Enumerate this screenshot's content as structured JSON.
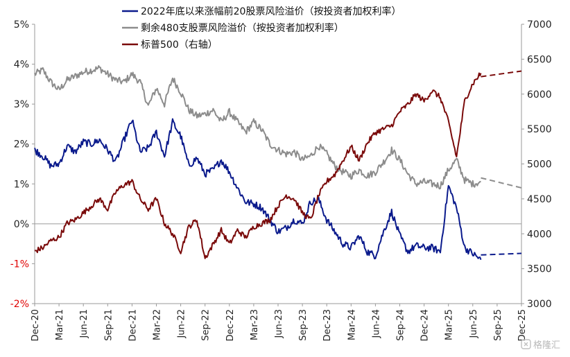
{
  "chart_data": {
    "type": "line",
    "legend": {
      "placement": "top",
      "entries": [
        {
          "label": "2022年底以来涨幅前20股票风险溢价（按投资者加权利率）",
          "color": "#0a1a8c"
        },
        {
          "label": "剩余480支股票风险溢价（按投资者加权利率）",
          "color": "#8c8c8c"
        },
        {
          "label": "标普500（右轴）",
          "color": "#7a0a0a"
        }
      ]
    },
    "y_left": {
      "ylim": [
        -2,
        5
      ],
      "ticks": [
        {
          "value": 5,
          "label": "5%"
        },
        {
          "value": 4,
          "label": "4%"
        },
        {
          "value": 3,
          "label": "3%"
        },
        {
          "value": 2,
          "label": "2%"
        },
        {
          "value": 1,
          "label": "1%"
        },
        {
          "value": 0,
          "label": "0%"
        },
        {
          "value": -1,
          "label": "-1%"
        },
        {
          "value": -2,
          "label": "-2%"
        }
      ]
    },
    "y_right": {
      "ylim": [
        3000,
        7000
      ],
      "ticks": [
        {
          "value": 7000,
          "label": "7000"
        },
        {
          "value": 6500,
          "label": "6500"
        },
        {
          "value": 6000,
          "label": "6000"
        },
        {
          "value": 5500,
          "label": "5500"
        },
        {
          "value": 5000,
          "label": "5000"
        },
        {
          "value": 4500,
          "label": "4500"
        },
        {
          "value": 4000,
          "label": "4000"
        },
        {
          "value": 3500,
          "label": "3500"
        },
        {
          "value": 3000,
          "label": "3000"
        }
      ]
    },
    "x_axis": {
      "range": [
        "2020-12",
        "2025-12"
      ],
      "ticks": [
        {
          "date": "2020-12",
          "label": "Dec-20"
        },
        {
          "date": "2021-03",
          "label": "Mar-21"
        },
        {
          "date": "2021-06",
          "label": "Jun-21"
        },
        {
          "date": "2021-09",
          "label": "Sep-21"
        },
        {
          "date": "2021-12",
          "label": "Dec-21"
        },
        {
          "date": "2022-03",
          "label": "Mar-22"
        },
        {
          "date": "2022-06",
          "label": "Jun-22"
        },
        {
          "date": "2022-09",
          "label": "Sep-22"
        },
        {
          "date": "2022-12",
          "label": "Dec-22"
        },
        {
          "date": "2023-03",
          "label": "Mar-23"
        },
        {
          "date": "2023-06",
          "label": "Jun-23"
        },
        {
          "date": "2023-09",
          "label": "Sep-23"
        },
        {
          "date": "2023-12",
          "label": "Dec-23"
        },
        {
          "date": "2024-03",
          "label": "Mar-24"
        },
        {
          "date": "2024-06",
          "label": "Jun-24"
        },
        {
          "date": "2024-09",
          "label": "Sep-24"
        },
        {
          "date": "2024-12",
          "label": "Dec-24"
        },
        {
          "date": "2025-03",
          "label": "Mar-25"
        },
        {
          "date": "2025-06",
          "label": "Jun-25"
        },
        {
          "date": "2025-09",
          "label": "Sep-25"
        },
        {
          "date": "2025-12",
          "label": "Dec-25"
        }
      ]
    },
    "series": [
      {
        "name": "2022年底以来涨幅前20股票风险溢价（按投资者加权利率）",
        "axis": "left",
        "color": "#0a1a8c",
        "points": [
          [
            "2020-12",
            1.85
          ],
          [
            "2021-01",
            1.7
          ],
          [
            "2021-02",
            1.45
          ],
          [
            "2021-03",
            1.5
          ],
          [
            "2021-04",
            1.95
          ],
          [
            "2021-05",
            1.8
          ],
          [
            "2021-06",
            2.05
          ],
          [
            "2021-07",
            2.0
          ],
          [
            "2021-08",
            2.1
          ],
          [
            "2021-09",
            1.85
          ],
          [
            "2021-10",
            1.55
          ],
          [
            "2021-11",
            2.1
          ],
          [
            "2021-12",
            2.6
          ],
          [
            "2022-01",
            1.8
          ],
          [
            "2022-02",
            1.9
          ],
          [
            "2022-03",
            2.3
          ],
          [
            "2022-04",
            1.7
          ],
          [
            "2022-05",
            2.55
          ],
          [
            "2022-06",
            2.2
          ],
          [
            "2022-07",
            1.45
          ],
          [
            "2022-08",
            1.65
          ],
          [
            "2022-09",
            1.25
          ],
          [
            "2022-10",
            1.35
          ],
          [
            "2022-11",
            1.6
          ],
          [
            "2022-12",
            1.3
          ],
          [
            "2023-01",
            0.9
          ],
          [
            "2023-02",
            0.55
          ],
          [
            "2023-03",
            0.5
          ],
          [
            "2023-04",
            0.4
          ],
          [
            "2023-05",
            0.1
          ],
          [
            "2023-06",
            -0.2
          ],
          [
            "2023-07",
            -0.1
          ],
          [
            "2023-08",
            0.1
          ],
          [
            "2023-09",
            0.0
          ],
          [
            "2023-10",
            0.55
          ],
          [
            "2023-11",
            0.6
          ],
          [
            "2023-12",
            0.1
          ],
          [
            "2024-01",
            -0.2
          ],
          [
            "2024-02",
            -0.5
          ],
          [
            "2024-03",
            -0.6
          ],
          [
            "2024-04",
            -0.3
          ],
          [
            "2024-05",
            -0.7
          ],
          [
            "2024-06",
            -0.8
          ],
          [
            "2024-07",
            -0.2
          ],
          [
            "2024-08",
            0.3
          ],
          [
            "2024-09",
            -0.3
          ],
          [
            "2024-10",
            -0.7
          ],
          [
            "2024-11",
            -0.55
          ],
          [
            "2024-12",
            -0.6
          ],
          [
            "2025-01",
            -0.6
          ],
          [
            "2025-02",
            -0.7
          ],
          [
            "2025-03",
            0.95
          ],
          [
            "2025-04",
            0.4
          ],
          [
            "2025-05",
            -0.6
          ],
          [
            "2025-06",
            -0.75
          ],
          [
            "2025-07",
            -0.9
          ]
        ],
        "projection": [
          [
            "2025-07",
            -0.78
          ],
          [
            "2025-12",
            -0.74
          ]
        ]
      },
      {
        "name": "剩余480支股票风险溢价（按投资者加权利率）",
        "axis": "left",
        "color": "#8c8c8c",
        "points": [
          [
            "2020-12",
            3.75
          ],
          [
            "2021-01",
            3.85
          ],
          [
            "2021-02",
            3.55
          ],
          [
            "2021-03",
            3.35
          ],
          [
            "2021-04",
            3.6
          ],
          [
            "2021-05",
            3.7
          ],
          [
            "2021-06",
            3.8
          ],
          [
            "2021-07",
            3.85
          ],
          [
            "2021-08",
            3.9
          ],
          [
            "2021-09",
            3.75
          ],
          [
            "2021-10",
            3.6
          ],
          [
            "2021-11",
            3.55
          ],
          [
            "2021-12",
            3.75
          ],
          [
            "2022-01",
            3.55
          ],
          [
            "2022-02",
            2.95
          ],
          [
            "2022-03",
            3.4
          ],
          [
            "2022-04",
            3.0
          ],
          [
            "2022-05",
            3.65
          ],
          [
            "2022-06",
            3.3
          ],
          [
            "2022-07",
            2.85
          ],
          [
            "2022-08",
            2.7
          ],
          [
            "2022-09",
            2.75
          ],
          [
            "2022-10",
            2.85
          ],
          [
            "2022-11",
            2.55
          ],
          [
            "2022-12",
            2.8
          ],
          [
            "2023-01",
            2.55
          ],
          [
            "2023-02",
            2.3
          ],
          [
            "2023-03",
            2.55
          ],
          [
            "2023-04",
            2.35
          ],
          [
            "2023-05",
            2.0
          ],
          [
            "2023-06",
            1.85
          ],
          [
            "2023-07",
            1.75
          ],
          [
            "2023-08",
            1.8
          ],
          [
            "2023-09",
            1.6
          ],
          [
            "2023-10",
            1.7
          ],
          [
            "2023-11",
            1.95
          ],
          [
            "2023-12",
            1.75
          ],
          [
            "2024-01",
            1.45
          ],
          [
            "2024-02",
            1.3
          ],
          [
            "2024-03",
            1.2
          ],
          [
            "2024-04",
            1.35
          ],
          [
            "2024-05",
            1.2
          ],
          [
            "2024-06",
            1.3
          ],
          [
            "2024-07",
            1.55
          ],
          [
            "2024-08",
            1.85
          ],
          [
            "2024-09",
            1.6
          ],
          [
            "2024-10",
            1.25
          ],
          [
            "2024-11",
            1.0
          ],
          [
            "2024-12",
            1.05
          ],
          [
            "2025-01",
            1.0
          ],
          [
            "2025-02",
            0.95
          ],
          [
            "2025-03",
            1.35
          ],
          [
            "2025-04",
            1.6
          ],
          [
            "2025-05",
            1.1
          ],
          [
            "2025-06",
            1.0
          ],
          [
            "2025-07",
            1.05
          ]
        ],
        "projection": [
          [
            "2025-07",
            1.15
          ],
          [
            "2025-12",
            0.9
          ]
        ]
      },
      {
        "name": "标普500（右轴）",
        "axis": "right",
        "color": "#7a0a0a",
        "points": [
          [
            "2020-12",
            3750
          ],
          [
            "2021-01",
            3800
          ],
          [
            "2021-02",
            3900
          ],
          [
            "2021-03",
            3950
          ],
          [
            "2021-04",
            4150
          ],
          [
            "2021-05",
            4200
          ],
          [
            "2021-06",
            4300
          ],
          [
            "2021-07",
            4400
          ],
          [
            "2021-08",
            4500
          ],
          [
            "2021-09",
            4350
          ],
          [
            "2021-10",
            4600
          ],
          [
            "2021-11",
            4700
          ],
          [
            "2021-12",
            4750
          ],
          [
            "2022-01",
            4500
          ],
          [
            "2022-02",
            4350
          ],
          [
            "2022-03",
            4500
          ],
          [
            "2022-04",
            4150
          ],
          [
            "2022-05",
            4000
          ],
          [
            "2022-06",
            3750
          ],
          [
            "2022-07",
            4100
          ],
          [
            "2022-08",
            4200
          ],
          [
            "2022-09",
            3650
          ],
          [
            "2022-10",
            3850
          ],
          [
            "2022-11",
            4050
          ],
          [
            "2022-12",
            3850
          ],
          [
            "2023-01",
            4050
          ],
          [
            "2023-02",
            3950
          ],
          [
            "2023-03",
            4100
          ],
          [
            "2023-04",
            4150
          ],
          [
            "2023-05",
            4200
          ],
          [
            "2023-06",
            4400
          ],
          [
            "2023-07",
            4550
          ],
          [
            "2023-08",
            4500
          ],
          [
            "2023-09",
            4300
          ],
          [
            "2023-10",
            4200
          ],
          [
            "2023-11",
            4550
          ],
          [
            "2023-12",
            4750
          ],
          [
            "2024-01",
            4850
          ],
          [
            "2024-02",
            5050
          ],
          [
            "2024-03",
            5250
          ],
          [
            "2024-04",
            5050
          ],
          [
            "2024-05",
            5300
          ],
          [
            "2024-06",
            5450
          ],
          [
            "2024-07",
            5500
          ],
          [
            "2024-08",
            5550
          ],
          [
            "2024-09",
            5750
          ],
          [
            "2024-10",
            5850
          ],
          [
            "2024-11",
            6000
          ],
          [
            "2024-12",
            5900
          ],
          [
            "2025-01",
            6050
          ],
          [
            "2025-02",
            5950
          ],
          [
            "2025-03",
            5600
          ],
          [
            "2025-04",
            5100
          ],
          [
            "2025-05",
            5900
          ],
          [
            "2025-06",
            6150
          ],
          [
            "2025-07",
            6300
          ]
        ],
        "projection": [
          [
            "2025-07",
            6250
          ],
          [
            "2025-12",
            6330
          ]
        ]
      }
    ],
    "grid": false
  },
  "watermark": {
    "icon": "gelonghui-logo-icon",
    "text": "格隆汇"
  }
}
